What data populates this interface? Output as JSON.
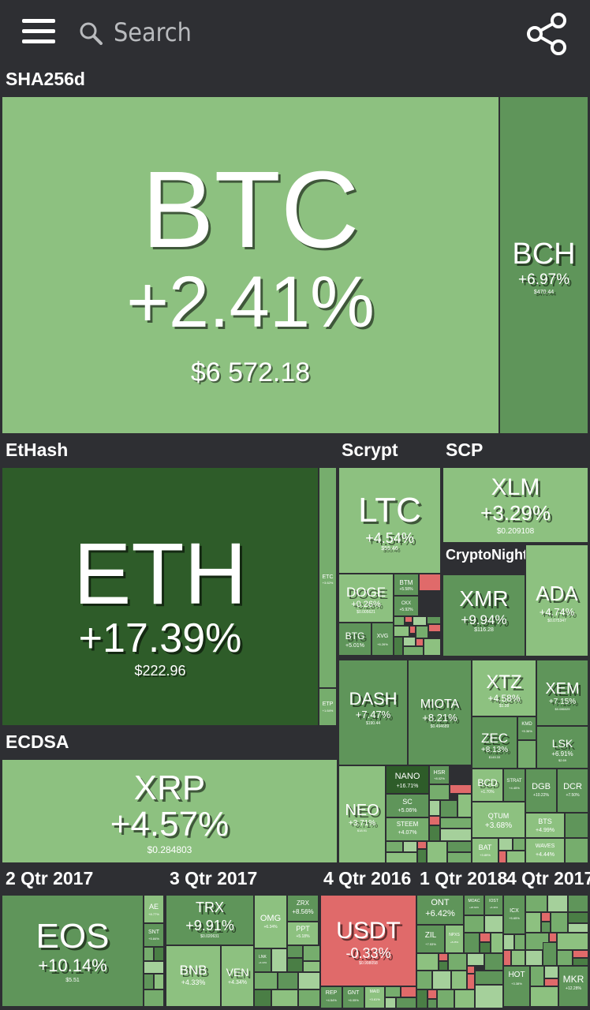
{
  "header": {
    "search_placeholder": "Search"
  },
  "groups": {
    "sha256d": "SHA256d",
    "ethash": "EtHash",
    "scrypt": "Scrypt",
    "scp": "SCP",
    "cryptonight": "CryptoNight",
    "ecdsa": "ECDSA",
    "q2_2017": "2 Qtr 2017",
    "q3_2017": "3 Qtr 2017",
    "q4_2016": "4 Qtr 2016",
    "q1_2018": "1 Qtr 2018",
    "q4_2017": "4 Qtr 2017"
  },
  "coins": {
    "btc": {
      "symbol": "BTC",
      "change": "+2.41%",
      "price": "$6 572.18"
    },
    "bch": {
      "symbol": "BCH",
      "change": "+6.97%",
      "price": "$470.44"
    },
    "eth": {
      "symbol": "ETH",
      "change": "+17.39%",
      "price": "$222.96"
    },
    "etc": {
      "symbol": "ETC",
      "change": "+3.62%"
    },
    "etp": {
      "symbol": "ETP",
      "change": "+1.64%"
    },
    "ltc": {
      "symbol": "LTC",
      "change": "+4.54%",
      "price": "$55.46"
    },
    "xlm": {
      "symbol": "XLM",
      "change": "+3.29%",
      "price": "$0.209108"
    },
    "doge": {
      "symbol": "DOGE",
      "change": "+0.26%",
      "price": "$0.005621"
    },
    "btm": {
      "symbol": "BTM",
      "change": "+5.58%"
    },
    "ckx": {
      "symbol": "CKX",
      "change": "+5.92%"
    },
    "btg": {
      "symbol": "BTG",
      "change": "+5.01%"
    },
    "xvg": {
      "symbol": "XVG",
      "change": "+6.26%"
    },
    "xmr": {
      "symbol": "XMR",
      "change": "+9.94%",
      "price": "$116.28"
    },
    "ada": {
      "symbol": "ADA",
      "change": "+4.74%",
      "price": "$0.075347"
    },
    "dash": {
      "symbol": "DASH",
      "change": "+7.47%",
      "price": "$190.44"
    },
    "miota": {
      "symbol": "MIOTA",
      "change": "+8.21%",
      "price": "$0.494689"
    },
    "xtz": {
      "symbol": "XTZ",
      "change": "+4.58%",
      "price": "$1.38"
    },
    "xem": {
      "symbol": "XEM",
      "change": "+7.15%",
      "price": "$0.086029"
    },
    "zec": {
      "symbol": "ZEC",
      "change": "+8.13%",
      "price": "$145.33"
    },
    "kmd": {
      "symbol": "KMD",
      "change": "+5.36%"
    },
    "lsk": {
      "symbol": "LSK",
      "change": "+6.91%",
      "price": "$2.69"
    },
    "nano": {
      "symbol": "NANO",
      "change": "+16.71%"
    },
    "hsr": {
      "symbol": "HSR",
      "change": "+8.02%"
    },
    "sc": {
      "symbol": "SC",
      "change": "+5.06%"
    },
    "steem": {
      "symbol": "STEEM",
      "change": "+4.07%"
    },
    "neo": {
      "symbol": "NEO",
      "change": "+3.71%",
      "price": "$18.91"
    },
    "bcd": {
      "symbol": "BCD",
      "change": "+1.70%"
    },
    "strat": {
      "symbol": "STRAT",
      "change": "+4.45%"
    },
    "dgb": {
      "symbol": "DGB",
      "change": "+10.22%"
    },
    "dcr": {
      "symbol": "DCR",
      "change": "+7.50%"
    },
    "qtum": {
      "symbol": "QTUM",
      "change": "+3.68%"
    },
    "bts": {
      "symbol": "BTS",
      "change": "+4.99%"
    },
    "bat": {
      "symbol": "BAT",
      "change": "+3.89%"
    },
    "waves": {
      "symbol": "WAVES",
      "change": "+4.44%"
    },
    "xrp": {
      "symbol": "XRP",
      "change": "+4.57%",
      "price": "$0.284803"
    },
    "eos": {
      "symbol": "EOS",
      "change": "+10.14%",
      "price": "$5.51"
    },
    "ae": {
      "symbol": "AE",
      "change": "+8.77%"
    },
    "snt": {
      "symbol": "SNT",
      "change": "+5.84%"
    },
    "trx": {
      "symbol": "TRX",
      "change": "+9.91%",
      "price": "$0.020631"
    },
    "omg": {
      "symbol": "OMG",
      "change": "+6.34%"
    },
    "zrx": {
      "symbol": "ZRX",
      "change": "+8.56%"
    },
    "ppt": {
      "symbol": "PPT",
      "change": "+5.18%"
    },
    "bnb": {
      "symbol": "BNB",
      "change": "+4.33%"
    },
    "ven": {
      "symbol": "VEN",
      "change": "+4.34%"
    },
    "lnk": {
      "symbol": "LNK",
      "change": "+6.10%"
    },
    "usdt": {
      "symbol": "USDT",
      "change": "-0.33%",
      "price": "$0.998058"
    },
    "rep": {
      "symbol": "REP",
      "change": "+4.54%"
    },
    "gnt": {
      "symbol": "GNT",
      "change": "+6.05%"
    },
    "maid": {
      "symbol": "MAID",
      "change": "+3.61%"
    },
    "ont": {
      "symbol": "ONT",
      "change": "+6.42%"
    },
    "moac": {
      "symbol": "MOAC",
      "change": "+26.62%"
    },
    "iost": {
      "symbol": "IOST",
      "change": "+6.44%"
    },
    "zil": {
      "symbol": "ZIL",
      "change": "+7.53%"
    },
    "npxs": {
      "symbol": "NPXS",
      "change": "+8.25%"
    },
    "icx": {
      "symbol": "ICX",
      "change": "+5.65%"
    },
    "hot": {
      "symbol": "HOT",
      "change": "+3.38%"
    },
    "mkr": {
      "symbol": "MKR",
      "change": "+12.28%"
    }
  },
  "colors": {
    "up_light": "#8dc180",
    "up_mid": "#5f955a",
    "up_dark": "#2e5c29",
    "down": "#e06a6a",
    "bg": "#2e2f33"
  }
}
